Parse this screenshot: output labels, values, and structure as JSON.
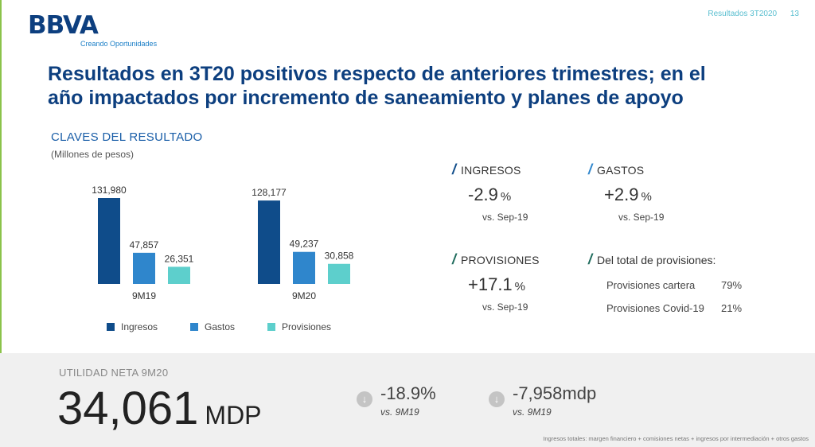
{
  "header": {
    "logo": "BBVA",
    "tagline": "Creando Oportunidades",
    "deck_title": "Resultados 3T2020",
    "page_number": "13"
  },
  "headline": {
    "line1": "Resultados en 3T20 positivos respecto de anteriores trimestres; en el",
    "line2": "año impactados por incremento de saneamiento y planes de apoyo"
  },
  "claves": {
    "title": "CLAVES DEL RESULTADO",
    "subtitle": "(Millones de pesos)"
  },
  "colors": {
    "ingresos": "#0f4c8a",
    "gastos": "#2f86cc",
    "provisiones": "#5dcfcc",
    "brand": "#0d3f7f",
    "slash_blue": "#0f4c8a",
    "slash_light": "#2f86cc",
    "slash_green": "#1e6b5c"
  },
  "chart_data": {
    "type": "bar",
    "categories": [
      "9M19",
      "9M20"
    ],
    "series": [
      {
        "name": "Ingresos",
        "values": [
          131980,
          128177
        ],
        "labels": [
          "131,980",
          "128,177"
        ]
      },
      {
        "name": "Gastos",
        "values": [
          47857,
          49237
        ],
        "labels": [
          "47,857",
          "49,237"
        ]
      },
      {
        "name": "Provisiones",
        "values": [
          26351,
          30858
        ],
        "labels": [
          "26,351",
          "30,858"
        ]
      }
    ],
    "title": "CLAVES DEL RESULTADO",
    "ylim": [
      0,
      140000
    ],
    "grid": false,
    "legend": "bottom"
  },
  "kpis": {
    "ingresos": {
      "label": "INGRESOS",
      "value": "-2.9",
      "unit": "%",
      "vs": "vs. Sep-19"
    },
    "gastos": {
      "label": "GASTOS",
      "value": "+2.9",
      "unit": "%",
      "vs": "vs. Sep-19"
    },
    "provisiones": {
      "label": "PROVISIONES",
      "value": "+17.1",
      "unit": "%",
      "vs": "vs. Sep-19"
    },
    "total_provisiones": {
      "label": "Del total de provisiones:",
      "items": [
        {
          "name": "Provisiones cartera",
          "pct": "79%"
        },
        {
          "name": "Provisiones Covid-19",
          "pct": "21%"
        }
      ]
    }
  },
  "utilidad": {
    "label": "UTILIDAD NETA 9M20",
    "value": "34,061",
    "unit": "MDP",
    "delta_pct": {
      "value": "-18.9%",
      "vs": "vs. 9M19",
      "icon": "arrow-down-circle-icon"
    },
    "delta_abs": {
      "value": "-7,958mdp",
      "vs": "vs. 9M19",
      "icon": "arrow-down-circle-icon"
    }
  },
  "footnote": "Ingresos totales: margen financiero + comisiones netas + ingresos por intermediación + otros gastos"
}
